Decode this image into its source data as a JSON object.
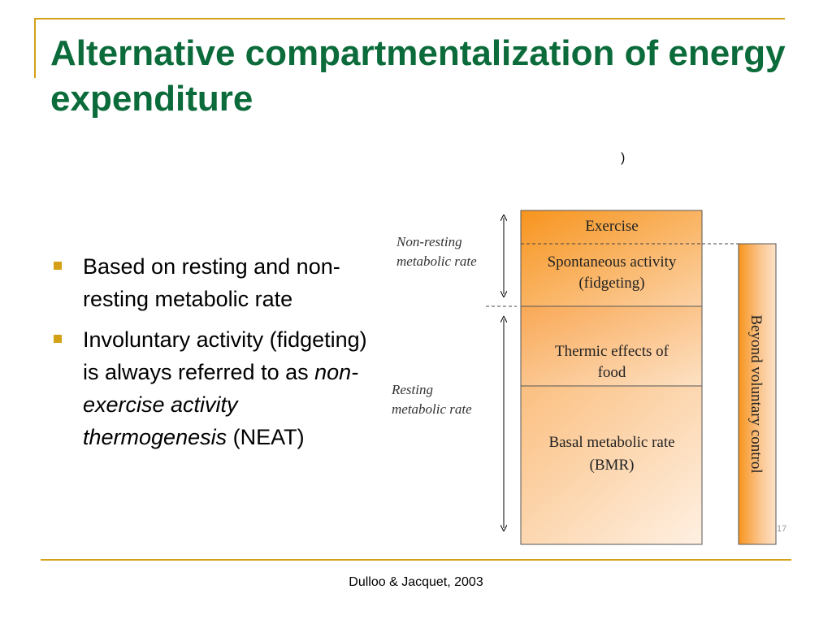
{
  "slide": {
    "title": "Alternative compartmentalization of energy expenditure",
    "stray_text": ")",
    "bullets": [
      {
        "text": "Based on resting and non-resting metabolic rate"
      },
      {
        "text_before": "Involuntary activity (fidgeting) is always referred to as ",
        "italic": "non-exercise activity thermogenesis",
        "text_after": " (NEAT)"
      }
    ],
    "slide_number": "17",
    "citation": "Dulloo & Jacquet, 2003"
  },
  "diagram": {
    "labels": {
      "non_resting": [
        "Non-resting",
        "metabolic rate"
      ],
      "resting": [
        "Resting",
        "metabolic rate"
      ]
    },
    "blocks": [
      {
        "id": "exercise",
        "lines": [
          "Exercise"
        ]
      },
      {
        "id": "spontaneous",
        "lines": [
          "Spontaneous activity",
          "(fidgeting)"
        ]
      },
      {
        "id": "thermic",
        "lines": [
          "Thermic effects of",
          "food"
        ]
      },
      {
        "id": "bmr",
        "lines": [
          "Basal metabolic rate",
          "(BMR)"
        ]
      }
    ],
    "side_bar_label": "Beyond voluntary control",
    "colors": {
      "title": "#0b6b3a",
      "accent_gold": "#d4a017",
      "block_orange": "#f7941d",
      "block_light": "#fde3c8"
    }
  }
}
